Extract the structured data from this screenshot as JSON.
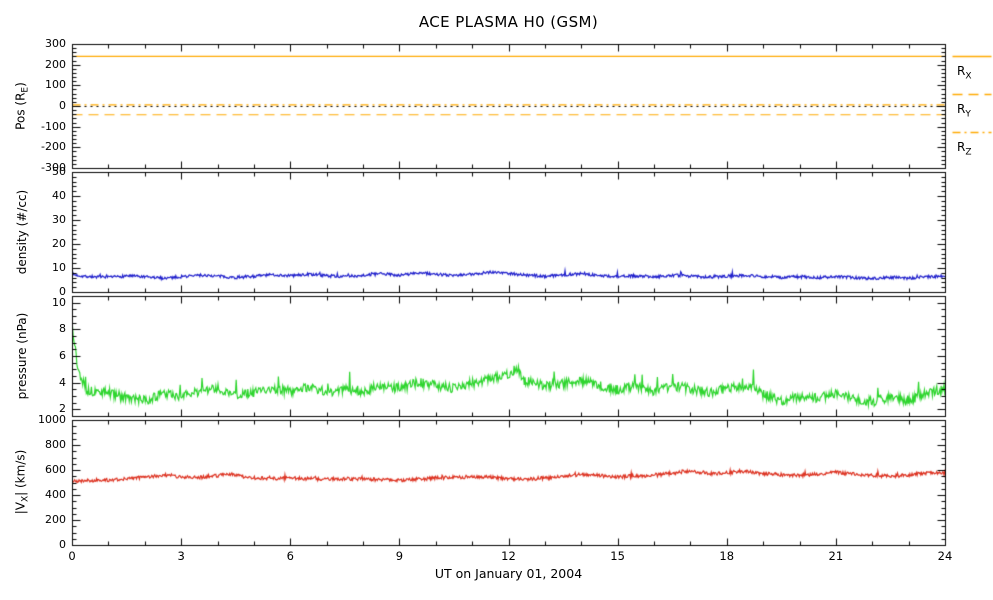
{
  "chart_data": {
    "type": "line",
    "title": "ACE PLASMA H0 (GSM)",
    "xlabel": "UT on January 01, 2004",
    "x_range": [
      0,
      24
    ],
    "x_ticks": [
      0,
      3,
      6,
      9,
      12,
      15,
      18,
      21,
      24
    ],
    "x_minor_step": 1,
    "legend": [
      {
        "main": "R",
        "sub": "X",
        "style": "solid",
        "color": "#ffaa00"
      },
      {
        "main": "R",
        "sub": "Y",
        "style": "dash",
        "color": "#ffaa00"
      },
      {
        "main": "R",
        "sub": "Z",
        "style": "dashdot",
        "color": "#ffaa00"
      }
    ],
    "panels": [
      {
        "id": "position",
        "ylabel_parts": {
          "pre": "Pos (R",
          "sub": "E",
          "post": ")"
        },
        "ylim": [
          -300,
          300
        ],
        "yticks": [
          300,
          200,
          100,
          0,
          -100,
          -200,
          -300
        ],
        "yminor": 20,
        "series": [
          {
            "name": "R_X",
            "type": "hline",
            "value": 243,
            "style": "solid",
            "color": "#ffaa00"
          },
          {
            "name": "R_Y",
            "type": "hline",
            "value": -40,
            "style": "dash",
            "color": "#ffaa00"
          },
          {
            "name": "R_Z",
            "type": "hline",
            "value": 8,
            "style": "dashdot",
            "color": "#ffaa00"
          },
          {
            "name": "zero-line",
            "type": "hline",
            "value": 0,
            "style": "dot",
            "color": "#000000"
          }
        ]
      },
      {
        "id": "density",
        "ylabel": "density (#/cc)",
        "ylim": [
          0,
          50
        ],
        "yticks": [
          50,
          40,
          30,
          20,
          10,
          0
        ],
        "yminor": 2,
        "series": [
          {
            "name": "density",
            "type": "noisy",
            "color": "#2020cc",
            "noise": 0.6,
            "spike": 1.5,
            "seed": 7,
            "anchors": [
              [
                0,
                7.5
              ],
              [
                0.3,
                6.8
              ],
              [
                1,
                6.2
              ],
              [
                1.5,
                7.0
              ],
              [
                2,
                6.4
              ],
              [
                2.5,
                6.0
              ],
              [
                3,
                6.6
              ],
              [
                3.5,
                7.2
              ],
              [
                4,
                6.8
              ],
              [
                4.5,
                6.2
              ],
              [
                5,
                6.8
              ],
              [
                5.5,
                7.4
              ],
              [
                6,
                7.0
              ],
              [
                6.5,
                7.6
              ],
              [
                7,
                7.0
              ],
              [
                7.5,
                6.6
              ],
              [
                8,
                7.2
              ],
              [
                8.5,
                7.8
              ],
              [
                9,
                7.2
              ],
              [
                9.5,
                8.2
              ],
              [
                10,
                7.6
              ],
              [
                10.5,
                7.0
              ],
              [
                11,
                7.6
              ],
              [
                11.5,
                8.6
              ],
              [
                12,
                8.0
              ],
              [
                12.5,
                7.2
              ],
              [
                13,
                6.8
              ],
              [
                13.5,
                7.4
              ],
              [
                14,
                7.8
              ],
              [
                14.5,
                7.0
              ],
              [
                15,
                6.6
              ],
              [
                15.5,
                7.0
              ],
              [
                16,
                6.6
              ],
              [
                16.5,
                7.2
              ],
              [
                17,
                6.8
              ],
              [
                17.5,
                6.4
              ],
              [
                18,
                6.8
              ],
              [
                18.5,
                7.2
              ],
              [
                19,
                6.6
              ],
              [
                19.5,
                6.2
              ],
              [
                20,
                6.6
              ],
              [
                20.5,
                6.2
              ],
              [
                21,
                6.6
              ],
              [
                21.5,
                6.2
              ],
              [
                22,
                5.8
              ],
              [
                22.5,
                6.4
              ],
              [
                23,
                6.0
              ],
              [
                23.5,
                6.6
              ],
              [
                24,
                6.8
              ]
            ]
          }
        ]
      },
      {
        "id": "pressure",
        "ylabel": "pressure (nPa)",
        "ylim": [
          1.5,
          10.5
        ],
        "yticks": [
          10,
          8,
          6,
          4,
          2
        ],
        "yminor": 0.5,
        "series": [
          {
            "name": "pressure",
            "type": "noisy",
            "color": "#2ed52e",
            "noise": 0.35,
            "spike": 1.3,
            "seed": 13,
            "anchors": [
              [
                0,
                8.2
              ],
              [
                0.15,
                5.0
              ],
              [
                0.4,
                3.4
              ],
              [
                1,
                3.3
              ],
              [
                1.5,
                2.9
              ],
              [
                2,
                2.7
              ],
              [
                2.5,
                3.2
              ],
              [
                3,
                3.0
              ],
              [
                3.5,
                3.4
              ],
              [
                4,
                3.6
              ],
              [
                4.5,
                3.1
              ],
              [
                5,
                3.3
              ],
              [
                5.5,
                3.6
              ],
              [
                6,
                3.4
              ],
              [
                6.5,
                3.7
              ],
              [
                7,
                3.3
              ],
              [
                7.5,
                3.6
              ],
              [
                8,
                3.4
              ],
              [
                8.5,
                3.8
              ],
              [
                9,
                3.6
              ],
              [
                9.5,
                4.1
              ],
              [
                10,
                3.8
              ],
              [
                10.5,
                3.6
              ],
              [
                11,
                4.0
              ],
              [
                11.5,
                4.4
              ],
              [
                12,
                4.6
              ],
              [
                12.2,
                5.2
              ],
              [
                12.4,
                4.2
              ],
              [
                13,
                3.8
              ],
              [
                13.5,
                4.0
              ],
              [
                14,
                4.2
              ],
              [
                14.5,
                3.8
              ],
              [
                15,
                3.5
              ],
              [
                15.5,
                3.8
              ],
              [
                16,
                3.4
              ],
              [
                16.5,
                3.8
              ],
              [
                17,
                3.6
              ],
              [
                17.5,
                3.3
              ],
              [
                18,
                3.6
              ],
              [
                18.5,
                3.8
              ],
              [
                19,
                3.2
              ],
              [
                19.5,
                2.6
              ],
              [
                20,
                3.0
              ],
              [
                20.5,
                2.9
              ],
              [
                21,
                3.2
              ],
              [
                21.5,
                2.8
              ],
              [
                22,
                2.6
              ],
              [
                22.5,
                3.0
              ],
              [
                23,
                2.7
              ],
              [
                23.5,
                3.3
              ],
              [
                24,
                3.6
              ]
            ]
          }
        ]
      },
      {
        "id": "speed",
        "ylabel_parts": {
          "pre": "|V",
          "sub": "X",
          "post": "| (km/s)"
        },
        "ylim": [
          0,
          1000
        ],
        "yticks": [
          1000,
          800,
          600,
          400,
          200,
          0
        ],
        "yminor": 50,
        "series": [
          {
            "name": "vx-magnitude",
            "type": "noisy",
            "color": "#dd3322",
            "noise": 14,
            "spike": 25,
            "seed": 21,
            "anchors": [
              [
                0,
                515
              ],
              [
                0.5,
                520
              ],
              [
                1,
                525
              ],
              [
                1.5,
                535
              ],
              [
                2,
                545
              ],
              [
                2.5,
                565
              ],
              [
                3,
                550
              ],
              [
                3.5,
                545
              ],
              [
                4,
                560
              ],
              [
                4.3,
                575
              ],
              [
                4.6,
                555
              ],
              [
                5,
                540
              ],
              [
                5.5,
                535
              ],
              [
                6,
                540
              ],
              [
                6.5,
                535
              ],
              [
                7,
                530
              ],
              [
                7.5,
                535
              ],
              [
                8,
                530
              ],
              [
                8.5,
                525
              ],
              [
                9,
                520
              ],
              [
                9.5,
                530
              ],
              [
                10,
                540
              ],
              [
                10.5,
                545
              ],
              [
                11,
                550
              ],
              [
                11.5,
                545
              ],
              [
                12,
                535
              ],
              [
                12.5,
                530
              ],
              [
                13,
                540
              ],
              [
                13.5,
                550
              ],
              [
                14,
                570
              ],
              [
                14.5,
                560
              ],
              [
                15,
                550
              ],
              [
                15.5,
                555
              ],
              [
                16,
                560
              ],
              [
                16.5,
                580
              ],
              [
                17,
                600
              ],
              [
                17.3,
                585
              ],
              [
                17.6,
                575
              ],
              [
                18,
                580
              ],
              [
                18.4,
                595
              ],
              [
                18.8,
                580
              ],
              [
                19.2,
                570
              ],
              [
                19.6,
                565
              ],
              [
                20,
                560
              ],
              [
                20.5,
                570
              ],
              [
                21,
                585
              ],
              [
                21.5,
                570
              ],
              [
                22,
                560
              ],
              [
                22.5,
                555
              ],
              [
                23,
                565
              ],
              [
                23.5,
                580
              ],
              [
                24,
                575
              ]
            ]
          }
        ]
      }
    ]
  }
}
